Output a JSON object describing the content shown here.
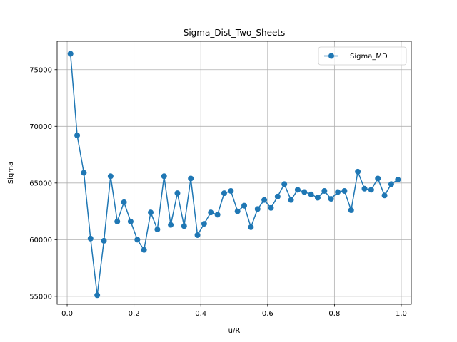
{
  "chart_data": {
    "type": "line",
    "title": "Sigma_Dist_Two_Sheets",
    "xlabel": "u/R",
    "ylabel": "Sigma",
    "xlim": [
      -0.03,
      1.03
    ],
    "ylim": [
      54300,
      77500
    ],
    "grid": true,
    "legend_position": "top-right",
    "x_ticks": [
      {
        "value": 0.0,
        "label": "0.0"
      },
      {
        "value": 0.2,
        "label": "0.2"
      },
      {
        "value": 0.4,
        "label": "0.4"
      },
      {
        "value": 0.6,
        "label": "0.6"
      },
      {
        "value": 0.8,
        "label": "0.8"
      },
      {
        "value": 1.0,
        "label": "1.0"
      }
    ],
    "y_ticks": [
      {
        "value": 55000,
        "label": "55000"
      },
      {
        "value": 60000,
        "label": "60000"
      },
      {
        "value": 65000,
        "label": "65000"
      },
      {
        "value": 70000,
        "label": "70000"
      },
      {
        "value": 75000,
        "label": "75000"
      }
    ],
    "series": [
      {
        "name": "Sigma_MD",
        "color": "#1f77b4",
        "marker": "circle",
        "x": [
          0.01,
          0.03,
          0.05,
          0.07,
          0.09,
          0.11,
          0.13,
          0.15,
          0.17,
          0.19,
          0.21,
          0.23,
          0.25,
          0.27,
          0.29,
          0.31,
          0.33,
          0.35,
          0.37,
          0.39,
          0.41,
          0.43,
          0.45,
          0.47,
          0.49,
          0.51,
          0.53,
          0.55,
          0.57,
          0.59,
          0.61,
          0.63,
          0.65,
          0.67,
          0.69,
          0.71,
          0.73,
          0.75,
          0.77,
          0.79,
          0.81,
          0.83,
          0.85,
          0.87,
          0.89,
          0.91,
          0.93,
          0.95,
          0.97,
          0.99
        ],
        "y": [
          76400,
          69200,
          65900,
          60100,
          55100,
          59900,
          65600,
          61600,
          63300,
          61600,
          60000,
          59100,
          62400,
          60900,
          65600,
          61300,
          64100,
          61200,
          65400,
          60400,
          61400,
          62400,
          62200,
          64100,
          64300,
          62500,
          63000,
          61100,
          62700,
          63500,
          62800,
          63800,
          64900,
          63500,
          64400,
          64200,
          64000,
          63700,
          64300,
          63600,
          64200,
          64300,
          62600,
          66000,
          64500,
          64400,
          65400,
          63900,
          64900,
          65300
        ]
      }
    ]
  }
}
